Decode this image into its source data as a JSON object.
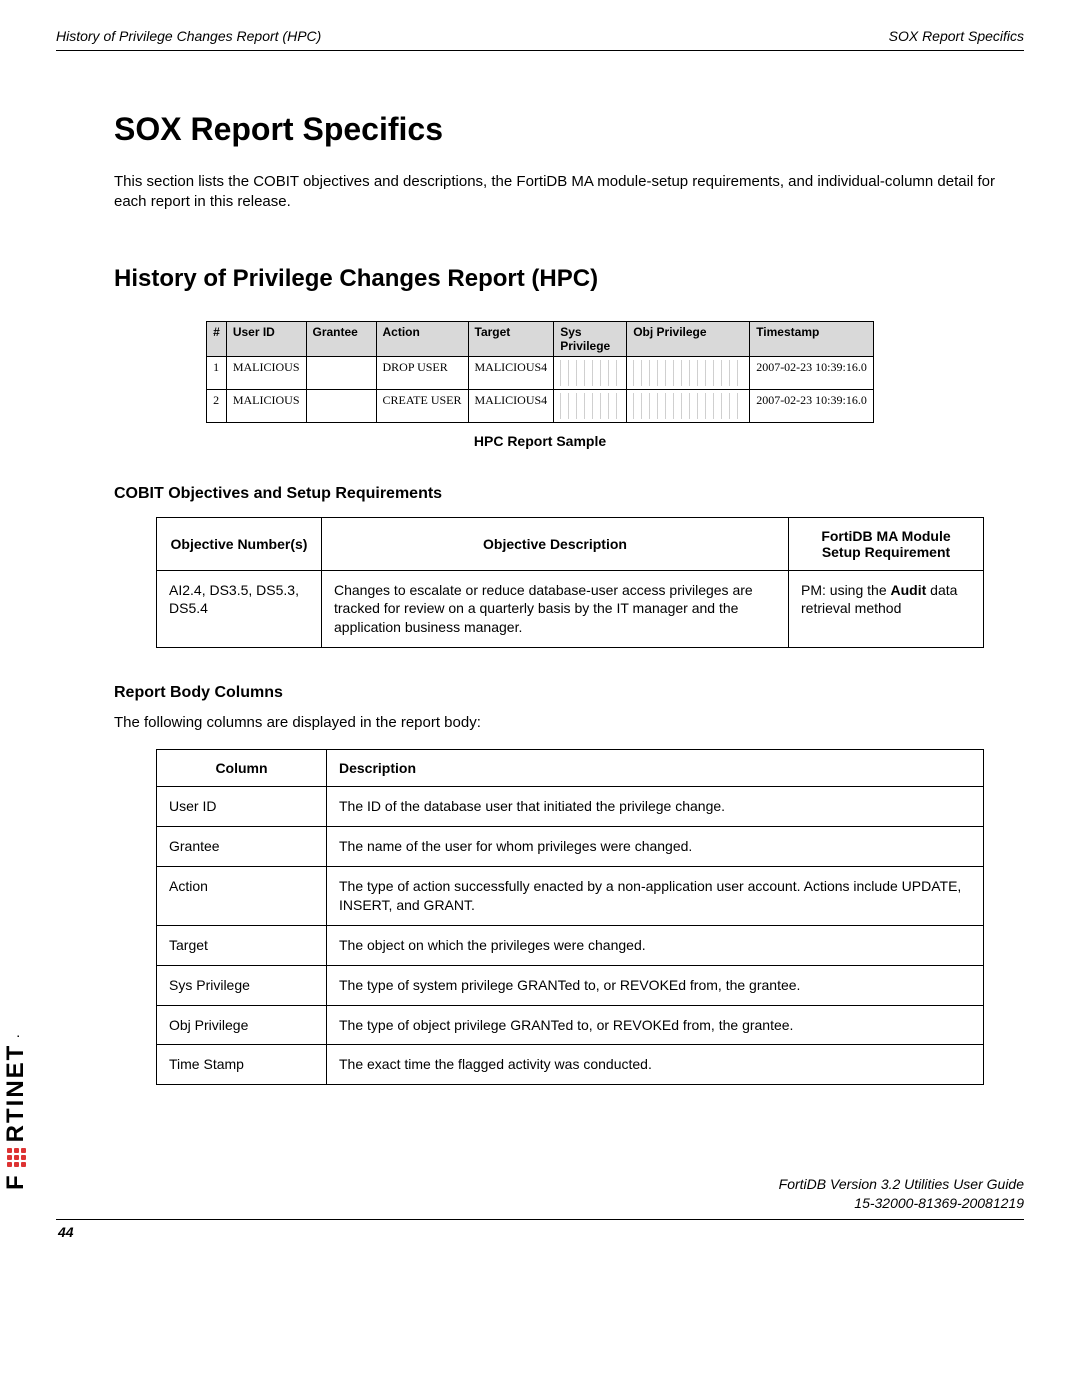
{
  "header": {
    "left": "History of Privilege Changes Report (HPC)",
    "right": "SOX Report Specifics"
  },
  "title": "SOX Report Specifics",
  "intro": "This section lists the COBIT objectives and descriptions, the FortiDB MA module-setup requirements, and individual-column detail for each report in this release.",
  "section_title": "History of Privilege Changes Report (HPC)",
  "sample": {
    "headers": [
      "#",
      "User ID",
      "Grantee",
      "Action",
      "Target",
      "Sys Privilege",
      "Obj Privilege",
      "Timestamp"
    ],
    "rows": [
      {
        "num": "1",
        "user_id": "MALICIOUS",
        "grantee": "",
        "action": "DROP USER",
        "target": "MALICIOUS4",
        "timestamp": "2007-02-23 10:39:16.0"
      },
      {
        "num": "2",
        "user_id": "MALICIOUS",
        "grantee": "",
        "action": "CREATE USER",
        "target": "MALICIOUS4",
        "timestamp": "2007-02-23 10:39:16.0"
      }
    ],
    "caption": "HPC Report Sample"
  },
  "cobit_title": "COBIT Objectives and Setup Requirements",
  "objectives": {
    "headers": [
      "Objective Number(s)",
      "Objective Description",
      "FortiDB MA Module Setup Requirement"
    ],
    "row": {
      "numbers": "AI2.4, DS3.5, DS5.3, DS5.4",
      "description": "Changes to escalate or reduce database-user access privileges are tracked for review on a quarterly basis by the IT manager and the application business manager.",
      "requirement_prefix": "PM: using the ",
      "requirement_bold": "Audit",
      "requirement_suffix": " data retrieval method"
    }
  },
  "body_columns_title": "Report Body Columns",
  "body_intro": "The following columns are displayed in the report body:",
  "columns_table": {
    "headers": [
      "Column",
      "Description"
    ],
    "rows": [
      {
        "c": "User ID",
        "d": "The ID of the database user that initiated the privilege change."
      },
      {
        "c": "Grantee",
        "d": "The name of the user for whom privileges were changed."
      },
      {
        "c": "Action",
        "d": "The type of action successfully enacted by a non-application user account. Actions include UPDATE, INSERT, and GRANT."
      },
      {
        "c": "Target",
        "d": "The object on which the privileges were changed."
      },
      {
        "c": "Sys Privilege",
        "d": "The type of system privilege GRANTed to, or REVOKEd from, the grantee."
      },
      {
        "c": "Obj Privilege",
        "d": "The type of object privilege GRANTed to, or REVOKEd from, the grantee."
      },
      {
        "c": "Time Stamp",
        "d": "The exact time the flagged activity was conducted."
      }
    ]
  },
  "footer": {
    "line1": "FortiDB Version 3.2 Utilities  User Guide",
    "line2": "15-32000-81369-20081219",
    "page": "44"
  },
  "brand": "F   RTINET",
  "colors": {
    "header_bg": "#d9d9d9",
    "border": "#000000",
    "brand_red": "#d33333"
  }
}
